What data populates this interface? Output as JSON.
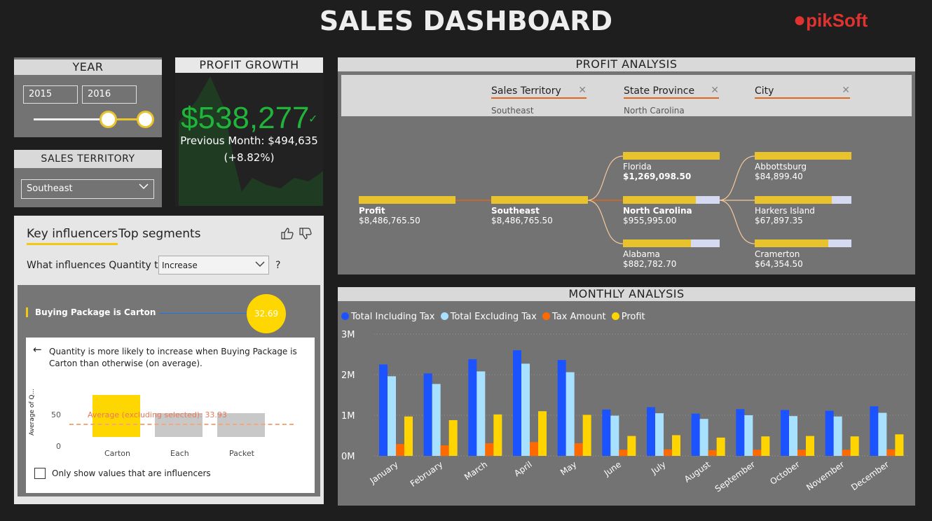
{
  "header": {
    "title": "SALES DASHBOARD",
    "logo": "pikSoft"
  },
  "year": {
    "title": "YEAR",
    "from": "2015",
    "to": "2016"
  },
  "territory": {
    "title": "SALES TERRITORY",
    "selected": "Southeast"
  },
  "profit_growth": {
    "title": "PROFIT GROWTH",
    "value": "$538,277",
    "previous": "Previous Month: $494,635",
    "change": "(+8.82%)"
  },
  "key_influencers": {
    "tabs": [
      "Key influencers",
      "Top segments"
    ],
    "question": "What influences Quantity to",
    "dropdown": "Increase",
    "qmark": "?",
    "factor": "Buying Package is Carton",
    "factor_value": "32.69",
    "detail": "Quantity is more likely to increase when Buying Package is Carton than otherwise (on average).",
    "avg_label": "Average (excluding selected): 33.93",
    "y_axis_title": "Average of Q...",
    "y_ticks": [
      "50",
      "0"
    ],
    "categories": [
      "Carton",
      "Each",
      "Packet"
    ],
    "checkbox_label": "Only show values that are influencers"
  },
  "profit_analysis": {
    "title": "PROFIT ANALYSIS",
    "filters": [
      {
        "label": "Sales Territory",
        "value": "Southeast"
      },
      {
        "label": "State Province",
        "value": "North Carolina"
      },
      {
        "label": "City",
        "value": ""
      }
    ],
    "root": {
      "name": "Profit",
      "value": "$8,486,765.50",
      "fill": 1.0
    },
    "level1": [
      {
        "name": "Southeast",
        "value": "$8,486,765.50",
        "fill": 1.0
      }
    ],
    "level2": [
      {
        "name": "Florida",
        "value": "$1,269,098.50",
        "fill": 1.0
      },
      {
        "name": "North Carolina",
        "value": "$955,995.00",
        "fill": 0.75
      },
      {
        "name": "Alabama",
        "value": "$882,782.70",
        "fill": 0.7
      }
    ],
    "level3": [
      {
        "name": "Abbottsburg",
        "value": "$84,899.40",
        "fill": 1.0
      },
      {
        "name": "Harkers Island",
        "value": "$67,897.35",
        "fill": 0.8
      },
      {
        "name": "Cramerton",
        "value": "$64,354.50",
        "fill": 0.76
      }
    ]
  },
  "monthly_analysis": {
    "title": "MONTHLY ANALYSIS"
  },
  "chart_data": {
    "type": "bar",
    "categories": [
      "January",
      "February",
      "March",
      "April",
      "May",
      "June",
      "July",
      "August",
      "September",
      "October",
      "November",
      "December"
    ],
    "series": [
      {
        "name": "Total Including Tax",
        "color": "#1a53ff",
        "values": [
          2.25,
          2.03,
          2.38,
          2.6,
          2.36,
          1.14,
          1.2,
          1.04,
          1.15,
          1.13,
          1.11,
          1.22
        ]
      },
      {
        "name": "Total Excluding Tax",
        "color": "#a8e1ff",
        "values": [
          1.96,
          1.77,
          2.08,
          2.27,
          2.06,
          0.99,
          1.05,
          0.91,
          1.0,
          0.98,
          0.97,
          1.06
        ]
      },
      {
        "name": "Tax Amount",
        "color": "#ff6a00",
        "values": [
          0.29,
          0.26,
          0.31,
          0.34,
          0.31,
          0.15,
          0.16,
          0.14,
          0.15,
          0.15,
          0.15,
          0.16
        ]
      },
      {
        "name": "Profit",
        "color": "#ffd400",
        "values": [
          0.97,
          0.88,
          1.02,
          1.1,
          1.01,
          0.49,
          0.51,
          0.45,
          0.48,
          0.49,
          0.48,
          0.53
        ]
      }
    ],
    "ylim": [
      0,
      3
    ],
    "yticks": [
      "0M",
      "1M",
      "2M",
      "3M"
    ]
  }
}
